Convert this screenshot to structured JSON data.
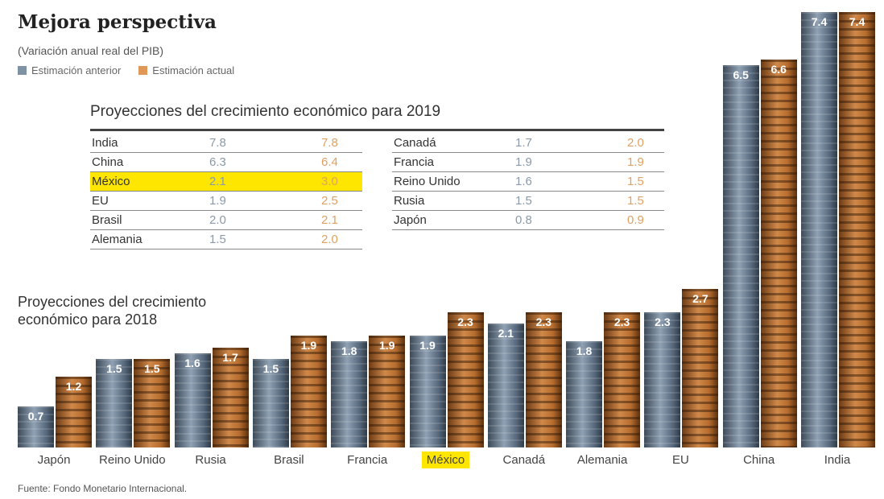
{
  "chart_data": {
    "type": "bar",
    "title": "Mejora perspectiva",
    "subtitle": "(Variación anual real del PIB)",
    "legend": [
      {
        "name": "Estimación anterior",
        "color": "#7f92a4"
      },
      {
        "name": "Estimación actual",
        "color": "#e09858"
      }
    ],
    "section_2018": "Proyecciones del crecimiento económico para 2018",
    "categories": [
      "Japón",
      "Reino Unido",
      "Rusia",
      "Brasil",
      "Francia",
      "México",
      "Canadá",
      "Alemania",
      "EU",
      "China",
      "India"
    ],
    "highlight": "México",
    "series": [
      {
        "name": "Estimación anterior",
        "values": [
          0.7,
          1.5,
          1.6,
          1.5,
          1.8,
          1.9,
          2.1,
          1.8,
          2.3,
          6.5,
          7.4
        ]
      },
      {
        "name": "Estimación actual",
        "values": [
          1.2,
          1.5,
          1.7,
          1.9,
          1.9,
          2.3,
          2.3,
          2.3,
          2.7,
          6.6,
          7.4
        ]
      }
    ],
    "ylim": [
      0,
      7.4
    ],
    "grid": false,
    "table_2019": {
      "title": "Proyecciones del crecimiento económico para 2019",
      "left": [
        [
          "India",
          "7.8",
          "7.8"
        ],
        [
          "China",
          "6.3",
          "6.4"
        ],
        [
          "México",
          "2.1",
          "3.0"
        ],
        [
          "EU",
          "1.9",
          "2.5"
        ],
        [
          "Brasil",
          "2.0",
          "2.1"
        ],
        [
          "Alemania",
          "1.5",
          "2.0"
        ]
      ],
      "right": [
        [
          "Canadá",
          "1.7",
          "2.0"
        ],
        [
          "Francia",
          "1.9",
          "1.9"
        ],
        [
          "Reino Unido",
          "1.6",
          "1.5"
        ],
        [
          "Rusia",
          "1.5",
          "1.5"
        ],
        [
          "Japón",
          "0.8",
          "0.9"
        ]
      ]
    },
    "source": "Fuente: Fondo Monetario Internacional."
  }
}
